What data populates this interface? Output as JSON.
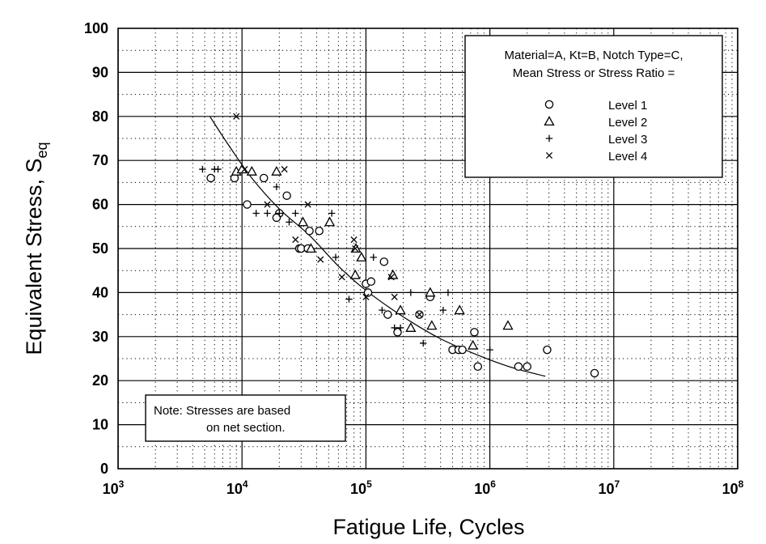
{
  "chart_data": {
    "type": "scatter",
    "xscale": "log",
    "xlim": [
      1000,
      100000000
    ],
    "ylim": [
      0,
      100
    ],
    "grid": true,
    "xlabel": "Fatigue Life, Cycles",
    "ylabel": "Equivalent Stress, ",
    "ylabel_main": "S",
    "ylabel_sub": "eq",
    "x_ticks": [
      {
        "base": "10",
        "exp": "3",
        "value": 1000
      },
      {
        "base": "10",
        "exp": "4",
        "value": 10000
      },
      {
        "base": "10",
        "exp": "5",
        "value": 100000
      },
      {
        "base": "10",
        "exp": "6",
        "value": 1000000
      },
      {
        "base": "10",
        "exp": "7",
        "value": 10000000
      },
      {
        "base": "10",
        "exp": "8",
        "value": 100000000
      }
    ],
    "y_ticks": [
      "0",
      "10",
      "20",
      "30",
      "40",
      "50",
      "60",
      "70",
      "80",
      "90",
      "100"
    ],
    "legend": {
      "placement": "top-right",
      "header_line1": "Material=A, Kt=B,  Notch Type=C,",
      "header_line2": "Mean Stress or Stress Ratio =",
      "entries": [
        {
          "marker": "circle",
          "label": "Level 1"
        },
        {
          "marker": "triangle",
          "label": "Level 2"
        },
        {
          "marker": "plus",
          "label": "Level 3"
        },
        {
          "marker": "x",
          "label": "Level 4"
        }
      ]
    },
    "note": {
      "placement": "bottom-left",
      "line1": "Note:   Stresses are based",
      "line2": "on net section."
    },
    "series": [
      {
        "name": "Level 1",
        "marker": "circle",
        "points": [
          [
            5600,
            66
          ],
          [
            8700,
            66
          ],
          [
            11000,
            60
          ],
          [
            15000,
            66
          ],
          [
            20000,
            58
          ],
          [
            19000,
            57
          ],
          [
            23000,
            62
          ],
          [
            29000,
            50
          ],
          [
            30000,
            50
          ],
          [
            34000,
            50
          ],
          [
            35000,
            54
          ],
          [
            42000,
            54
          ],
          [
            140000,
            47
          ],
          [
            100000,
            42
          ],
          [
            110000,
            42.5
          ],
          [
            104000,
            40
          ],
          [
            150000,
            35
          ],
          [
            180000,
            31
          ],
          [
            330000,
            39
          ],
          [
            270000,
            35
          ],
          [
            500000,
            27
          ],
          [
            560000,
            27
          ],
          [
            600000,
            27
          ],
          [
            750000,
            31
          ],
          [
            800000,
            23.2
          ],
          [
            1700000,
            23.2
          ],
          [
            2000000,
            23.2
          ],
          [
            2900000,
            27
          ],
          [
            7000000,
            21.7
          ]
        ]
      },
      {
        "name": "Level 2",
        "marker": "triangle",
        "points": [
          [
            9000,
            67.5
          ],
          [
            10000,
            68
          ],
          [
            12000,
            67.5
          ],
          [
            19000,
            67.5
          ],
          [
            31000,
            56
          ],
          [
            51000,
            56
          ],
          [
            36000,
            50
          ],
          [
            83000,
            50
          ],
          [
            92000,
            48
          ],
          [
            82000,
            44
          ],
          [
            165000,
            44
          ],
          [
            190000,
            36
          ],
          [
            230000,
            32
          ],
          [
            330000,
            40
          ],
          [
            340000,
            32.5
          ],
          [
            570000,
            36
          ],
          [
            730000,
            28
          ],
          [
            1400000,
            32.5
          ]
        ]
      },
      {
        "name": "Level 3",
        "marker": "plus",
        "points": [
          [
            4800,
            68
          ],
          [
            6000,
            68
          ],
          [
            6400,
            68
          ],
          [
            13000,
            58
          ],
          [
            16000,
            58
          ],
          [
            19000,
            64
          ],
          [
            20000,
            58
          ],
          [
            24000,
            56
          ],
          [
            27000,
            58
          ],
          [
            53000,
            58
          ],
          [
            57000,
            48
          ],
          [
            73000,
            38.5
          ],
          [
            115000,
            48
          ],
          [
            135000,
            36
          ],
          [
            170000,
            32
          ],
          [
            190000,
            32
          ],
          [
            230000,
            40
          ],
          [
            290000,
            28.5
          ],
          [
            420000,
            36
          ],
          [
            460000,
            40
          ],
          [
            1000000,
            27
          ]
        ]
      },
      {
        "name": "Level 4",
        "marker": "x",
        "points": [
          [
            9000,
            80
          ],
          [
            10500,
            68
          ],
          [
            22000,
            68
          ],
          [
            16000,
            60
          ],
          [
            34000,
            60
          ],
          [
            27000,
            52
          ],
          [
            43000,
            47.5
          ],
          [
            64000,
            43.5
          ],
          [
            80000,
            52
          ],
          [
            82000,
            50
          ],
          [
            100000,
            39
          ],
          [
            160000,
            43.5
          ],
          [
            170000,
            39
          ],
          [
            270000,
            35
          ]
        ]
      }
    ],
    "fit_curve": {
      "points": [
        [
          5500,
          80
        ],
        [
          8000,
          73
        ],
        [
          12000,
          66
        ],
        [
          20000,
          59
        ],
        [
          35000,
          53
        ],
        [
          60000,
          46
        ],
        [
          100000,
          40.5
        ],
        [
          200000,
          34.5
        ],
        [
          400000,
          29.5
        ],
        [
          800000,
          25.8
        ],
        [
          1500000,
          23
        ],
        [
          2800000,
          21
        ]
      ]
    }
  }
}
